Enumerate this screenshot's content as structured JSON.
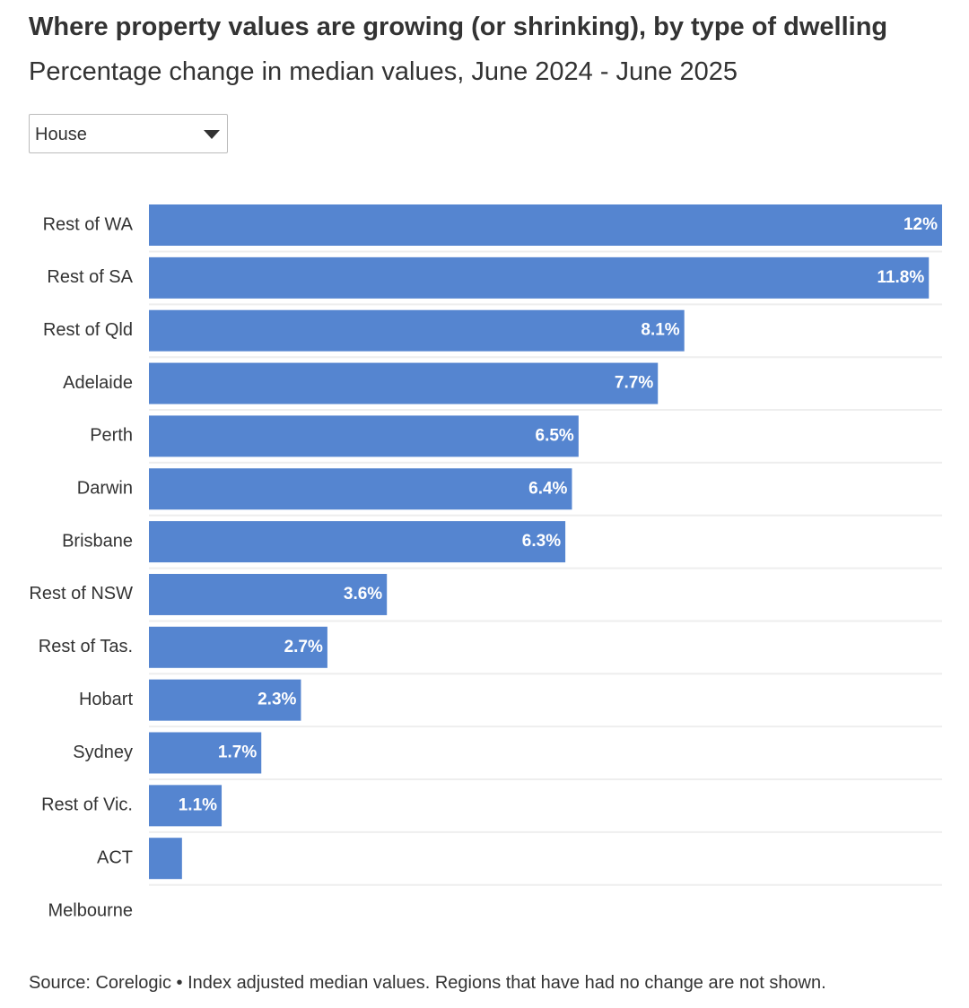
{
  "chart_data": {
    "type": "bar",
    "orientation": "horizontal",
    "title": "Where property values are growing (or shrinking), by type of dwelling",
    "subtitle": "Percentage change in median values, June 2024 - June 2025",
    "filter": "House",
    "categories": [
      "Rest of WA",
      "Rest of SA",
      "Rest of Qld",
      "Adelaide",
      "Perth",
      "Darwin",
      "Brisbane",
      "Rest of NSW",
      "Rest of Tas.",
      "Hobart",
      "Sydney",
      "Rest of Vic.",
      "ACT",
      "Melbourne"
    ],
    "values": [
      12,
      11.8,
      8.1,
      7.7,
      6.5,
      6.4,
      6.3,
      3.6,
      2.7,
      2.3,
      1.7,
      1.1,
      0.5,
      0
    ],
    "value_labels": [
      "12%",
      "11.8%",
      "8.1%",
      "7.7%",
      "6.5%",
      "6.4%",
      "6.3%",
      "3.6%",
      "2.7%",
      "2.3%",
      "1.7%",
      "1.1%",
      null,
      null
    ],
    "color": "#5585d0",
    "xlim": [
      0,
      12
    ],
    "source": "Source: Corelogic • Index adjusted median values. Regions that have had no change are not shown."
  }
}
